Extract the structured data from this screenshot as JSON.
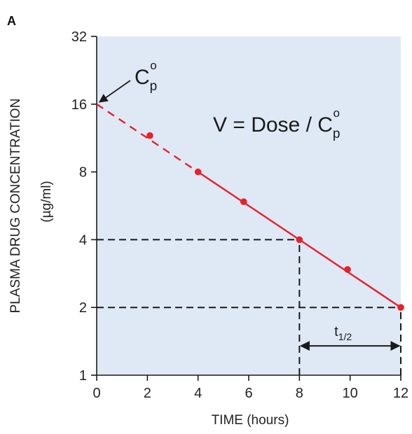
{
  "panel_label": "A",
  "colors": {
    "plot_background": "#dfe8f5",
    "line": "#e8202a",
    "reference_lines": "#1a1a1a",
    "text": "#1a1a1a"
  },
  "chart_data": {
    "type": "line",
    "xlabel": "TIME (hours)",
    "ylabel": "PLASMA DRUG CONCENTRATION",
    "ylabel_units": "(µg/ml)",
    "x_ticks": [
      0,
      2,
      4,
      6,
      8,
      10,
      12
    ],
    "y_ticks": [
      1,
      2,
      4,
      8,
      16,
      32
    ],
    "xlim": [
      0,
      12
    ],
    "ylim": [
      1,
      32
    ],
    "y_scale": "log2",
    "grid": false,
    "series": [
      {
        "style": "points",
        "x": [
          2.1,
          4,
          5.8,
          8,
          9.9,
          12
        ],
        "y": [
          11.6,
          8.0,
          5.9,
          4.0,
          2.95,
          2.0
        ]
      }
    ],
    "fit_line": {
      "solid": {
        "x": [
          4,
          12
        ],
        "y": [
          8,
          2
        ]
      },
      "dashed_extrapolation": {
        "x": [
          0,
          4
        ],
        "y": [
          16,
          8
        ]
      }
    },
    "reference_lines": [
      {
        "from": {
          "x": 0,
          "y": 4
        },
        "to": {
          "x": 8,
          "y": 4
        }
      },
      {
        "from": {
          "x": 8,
          "y": 1
        },
        "to": {
          "x": 8,
          "y": 4
        }
      },
      {
        "from": {
          "x": 0,
          "y": 2
        },
        "to": {
          "x": 12,
          "y": 2
        }
      },
      {
        "from": {
          "x": 12,
          "y": 1
        },
        "to": {
          "x": 12,
          "y": 2
        }
      }
    ],
    "half_life_bracket": {
      "x_from": 8,
      "x_to": 12,
      "y": 1.35
    },
    "annotations": {
      "intercept": {
        "base": "C",
        "sub": "p",
        "sup": "o",
        "x": 0,
        "y": 16
      },
      "equation": {
        "prefix": "V = Dose / ",
        "base": "C",
        "sub": "p",
        "sup": "o"
      },
      "half_life": {
        "base": "t",
        "sub": "1/2"
      }
    }
  }
}
